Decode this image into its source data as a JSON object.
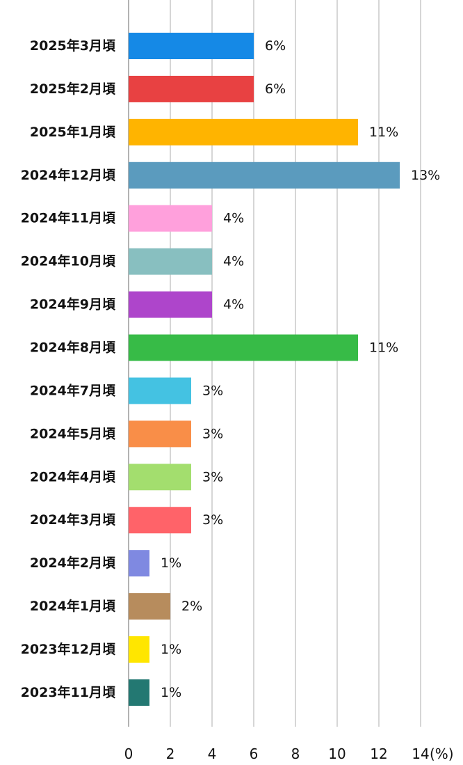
{
  "chart_data": {
    "type": "bar",
    "orientation": "horizontal",
    "categories": [
      "2025年3月頃",
      "2025年2月頃",
      "2025年1月頃",
      "2024年12月頃",
      "2024年11月頃",
      "2024年10月頃",
      "2024年9月頃",
      "2024年8月頃",
      "2024年7月頃",
      "2024年5月頃",
      "2024年4月頃",
      "2024年3月頃",
      "2024年2月頃",
      "2024年1月頃",
      "2023年12月頃",
      "2023年11月頃"
    ],
    "values": [
      6,
      6,
      11,
      13,
      4,
      4,
      4,
      11,
      3,
      3,
      3,
      3,
      1,
      2,
      1,
      1
    ],
    "value_labels": [
      "6%",
      "6%",
      "11%",
      "13%",
      "4%",
      "4%",
      "4%",
      "11%",
      "3%",
      "3%",
      "3%",
      "3%",
      "1%",
      "2%",
      "1%",
      "1%"
    ],
    "colors": [
      "#1589e6",
      "#e84142",
      "#ffb400",
      "#5b9bbe",
      "#ffa0dc",
      "#88bfc0",
      "#ae45cb",
      "#37bb47",
      "#44c2e2",
      "#f98e48",
      "#a3de6e",
      "#ff6369",
      "#7f89e1",
      "#b78c5d",
      "#ffe600",
      "#237872"
    ],
    "title": "",
    "xlabel": "",
    "ylabel": "",
    "xlim": [
      0,
      14
    ],
    "x_ticks": [
      0,
      2,
      4,
      6,
      8,
      10,
      12,
      14
    ],
    "x_tick_labels": [
      "0",
      "2",
      "4",
      "6",
      "8",
      "10",
      "12",
      "14"
    ],
    "x_unit": "(%)",
    "grid": "vertical",
    "legend": "none"
  }
}
